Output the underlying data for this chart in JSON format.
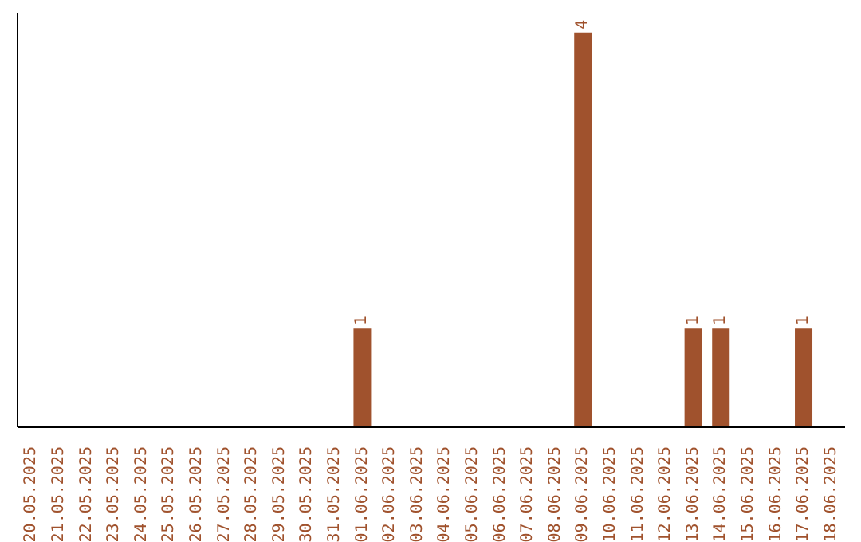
{
  "chart_data": {
    "type": "bar",
    "categories": [
      "20.05.2025",
      "21.05.2025",
      "22.05.2025",
      "23.05.2025",
      "24.05.2025",
      "25.05.2025",
      "26.05.2025",
      "27.05.2025",
      "28.05.2025",
      "29.05.2025",
      "30.05.2025",
      "31.05.2025",
      "01.06.2025",
      "02.06.2025",
      "03.06.2025",
      "04.06.2025",
      "05.06.2025",
      "06.06.2025",
      "07.06.2025",
      "08.06.2025",
      "09.06.2025",
      "10.06.2025",
      "11.06.2025",
      "12.06.2025",
      "13.06.2025",
      "14.06.2025",
      "15.06.2025",
      "16.06.2025",
      "17.06.2025",
      "18.06.2025"
    ],
    "values": [
      null,
      null,
      null,
      null,
      null,
      null,
      null,
      null,
      null,
      null,
      null,
      null,
      1,
      null,
      null,
      null,
      null,
      null,
      null,
      null,
      4,
      null,
      null,
      null,
      1,
      1,
      null,
      null,
      1,
      null
    ],
    "data_labels": true,
    "color": "#a0522d",
    "grid": false,
    "legend": false
  }
}
